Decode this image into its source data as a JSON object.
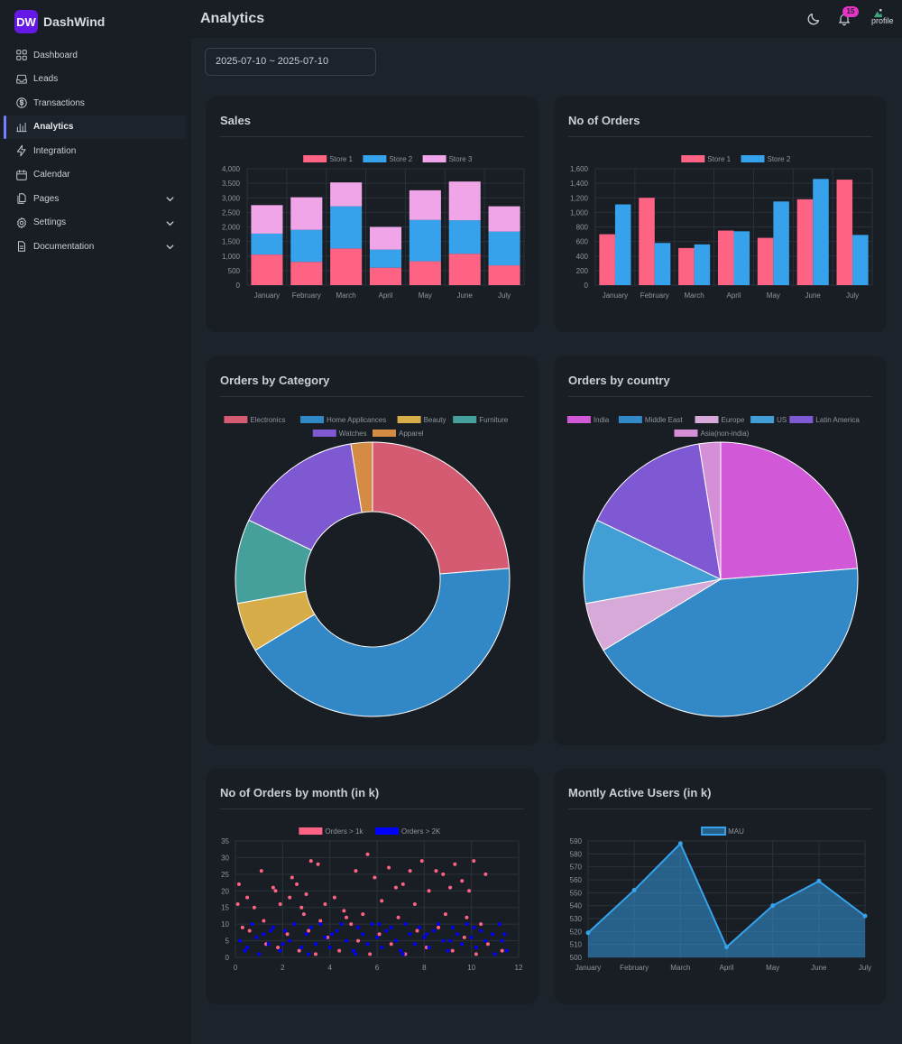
{
  "brand": {
    "logo": "DW",
    "name": "DashWind"
  },
  "sidebar": {
    "items": [
      {
        "label": "Dashboard",
        "icon": "squares-icon"
      },
      {
        "label": "Leads",
        "icon": "inbox-icon"
      },
      {
        "label": "Transactions",
        "icon": "dollar-icon"
      },
      {
        "label": "Analytics",
        "icon": "bar-chart-icon",
        "active": true
      },
      {
        "label": "Integration",
        "icon": "bolt-icon"
      },
      {
        "label": "Calendar",
        "icon": "calendar-icon"
      },
      {
        "label": "Pages",
        "icon": "documents-icon",
        "expandable": true
      },
      {
        "label": "Settings",
        "icon": "gear-icon",
        "expandable": true
      },
      {
        "label": "Documentation",
        "icon": "document-icon",
        "expandable": true
      }
    ]
  },
  "header": {
    "title": "Analytics",
    "notification_count": "15",
    "profile_alt": "profile"
  },
  "filters": {
    "date_range": "2025-07-10 ~ 2025-07-10"
  },
  "colors": {
    "pink": "#ff6384",
    "blue": "#36a2eb",
    "lavender": "#f0a5e8",
    "accent": "#7480ff"
  },
  "cards": {
    "sales": "Sales",
    "orders": "No of Orders",
    "category": "Orders by Category",
    "country": "Orders by country",
    "scatter": "No of Orders by month (in k)",
    "mau": "Montly Active Users (in k)"
  },
  "chart_data": [
    {
      "id": "sales",
      "type": "bar",
      "stacked": true,
      "categories": [
        "January",
        "February",
        "March",
        "April",
        "May",
        "June",
        "July"
      ],
      "series": [
        {
          "name": "Store 1",
          "color": "#ff6384",
          "values": [
            1050,
            800,
            1260,
            600,
            820,
            1080,
            680
          ]
        },
        {
          "name": "Store 2",
          "color": "#36a2eb",
          "values": [
            720,
            1100,
            1450,
            620,
            1420,
            1150,
            1160
          ]
        },
        {
          "name": "Store 3",
          "color": "#f0a5e8",
          "values": [
            980,
            1120,
            820,
            780,
            1020,
            1330,
            870
          ]
        }
      ],
      "ylim": [
        0,
        4000
      ],
      "yticks": [
        0,
        500,
        1000,
        1500,
        2000,
        2500,
        3000,
        3500,
        4000
      ],
      "ytick_labels": [
        "0",
        "500",
        "1,000",
        "1,500",
        "2,000",
        "2,500",
        "3,000",
        "3,500",
        "4,000"
      ],
      "legend": "top",
      "grid": true
    },
    {
      "id": "orders",
      "type": "bar",
      "stacked": false,
      "categories": [
        "January",
        "February",
        "March",
        "April",
        "May",
        "June",
        "July"
      ],
      "series": [
        {
          "name": "Store 1",
          "color": "#ff6384",
          "values": [
            700,
            1200,
            510,
            750,
            650,
            1180,
            1450
          ]
        },
        {
          "name": "Store 2",
          "color": "#36a2eb",
          "values": [
            1110,
            580,
            560,
            740,
            1150,
            1460,
            690
          ]
        }
      ],
      "ylim": [
        0,
        1600
      ],
      "yticks": [
        0,
        200,
        400,
        600,
        800,
        1000,
        1200,
        1400,
        1600
      ],
      "ytick_labels": [
        "0",
        "200",
        "400",
        "600",
        "800",
        "1,000",
        "1,200",
        "1,400",
        "1,600"
      ],
      "legend": "top",
      "grid": true
    },
    {
      "id": "category",
      "type": "pie",
      "doughnut": true,
      "labels": [
        "Electronics",
        "Home Applicances",
        "Beauty",
        "Furniture",
        "Watches",
        "Apparel"
      ],
      "values": [
        122,
        219,
        30,
        51,
        79,
        13
      ],
      "colors": [
        "#d55b73",
        "#3288c6",
        "#d7ad4a",
        "#45a09c",
        "#7f59d1",
        "#d48c44"
      ],
      "legend": "top"
    },
    {
      "id": "country",
      "type": "pie",
      "doughnut": false,
      "labels": [
        "India",
        "Middle East",
        "Europe",
        "US",
        "Latin America",
        "Asia(non-india)"
      ],
      "values": [
        122,
        219,
        30,
        51,
        79,
        13
      ],
      "colors": [
        "#d158d6",
        "#3389c8",
        "#d7a9d8",
        "#419fd6",
        "#7f58d4",
        "#d58fd6"
      ],
      "legend": "top"
    },
    {
      "id": "scatter",
      "type": "scatter",
      "series": [
        {
          "name": "Orders > 1k",
          "color": "#ff6384",
          "points": [
            [
              0.1,
              16
            ],
            [
              0.15,
              22
            ],
            [
              0.5,
              18
            ],
            [
              0.8,
              15
            ],
            [
              1.1,
              26
            ],
            [
              1.6,
              21
            ],
            [
              1.7,
              20
            ],
            [
              1.9,
              16
            ],
            [
              2.3,
              18
            ],
            [
              2.4,
              24
            ],
            [
              2.6,
              22
            ],
            [
              2.8,
              15
            ],
            [
              3,
              19
            ],
            [
              3.2,
              29
            ],
            [
              3.5,
              28
            ],
            [
              3.8,
              16
            ],
            [
              4.2,
              18
            ],
            [
              4.6,
              14
            ],
            [
              5.1,
              26
            ],
            [
              5.4,
              13
            ],
            [
              5.6,
              31
            ],
            [
              5.9,
              24
            ],
            [
              6.2,
              17
            ],
            [
              6.5,
              27
            ],
            [
              6.8,
              21
            ],
            [
              7.1,
              22
            ],
            [
              7.4,
              26
            ],
            [
              7.6,
              16
            ],
            [
              7.9,
              29
            ],
            [
              8.2,
              20
            ],
            [
              8.5,
              26
            ],
            [
              8.8,
              25
            ],
            [
              9.1,
              21
            ],
            [
              9.3,
              28
            ],
            [
              9.6,
              23
            ],
            [
              9.9,
              20
            ],
            [
              10.1,
              29
            ],
            [
              10.6,
              25
            ],
            [
              0.3,
              9
            ],
            [
              0.6,
              8
            ],
            [
              1.3,
              4
            ],
            [
              1.8,
              3
            ],
            [
              2.2,
              7
            ],
            [
              2.7,
              2
            ],
            [
              3.1,
              8
            ],
            [
              3.4,
              1
            ],
            [
              3.9,
              6
            ],
            [
              4.4,
              2
            ],
            [
              4.9,
              10
            ],
            [
              5.2,
              5
            ],
            [
              5.7,
              1
            ],
            [
              6.1,
              7
            ],
            [
              6.6,
              4
            ],
            [
              7.2,
              1
            ],
            [
              7.7,
              8
            ],
            [
              8.1,
              3
            ],
            [
              8.6,
              9
            ],
            [
              9.2,
              2
            ],
            [
              9.7,
              6
            ],
            [
              10.2,
              1
            ],
            [
              10.7,
              4
            ],
            [
              11.3,
              2
            ],
            [
              8.9,
              13
            ],
            [
              9.8,
              12
            ],
            [
              10.4,
              10
            ],
            [
              6.9,
              12
            ],
            [
              4.7,
              12
            ],
            [
              3.6,
              11
            ],
            [
              2.9,
              13
            ],
            [
              1.2,
              11
            ]
          ]
        },
        {
          "name": "Orders > 2K",
          "color": "#0000ff",
          "points": [
            [
              0.2,
              5
            ],
            [
              0.4,
              2
            ],
            [
              0.7,
              10
            ],
            [
              0.9,
              6
            ],
            [
              1.2,
              7
            ],
            [
              1.4,
              4
            ],
            [
              1.6,
              9
            ],
            [
              1.9,
              2
            ],
            [
              2.1,
              8
            ],
            [
              2.3,
              5
            ],
            [
              2.5,
              10
            ],
            [
              2.8,
              3
            ],
            [
              3,
              7
            ],
            [
              3.2,
              9
            ],
            [
              3.4,
              4
            ],
            [
              3.6,
              10
            ],
            [
              3.8,
              6
            ],
            [
              4,
              3
            ],
            [
              4.3,
              8
            ],
            [
              4.5,
              10
            ],
            [
              4.7,
              5
            ],
            [
              5,
              2
            ],
            [
              5.2,
              9
            ],
            [
              5.4,
              7
            ],
            [
              5.6,
              4
            ],
            [
              5.8,
              10
            ],
            [
              6,
              6
            ],
            [
              6.2,
              3
            ],
            [
              6.4,
              8
            ],
            [
              6.6,
              9
            ],
            [
              6.8,
              5
            ],
            [
              7,
              2
            ],
            [
              7.2,
              10
            ],
            [
              7.4,
              7
            ],
            [
              7.6,
              4
            ],
            [
              7.8,
              9
            ],
            [
              8,
              6
            ],
            [
              8.2,
              3
            ],
            [
              8.4,
              8
            ],
            [
              8.6,
              10
            ],
            [
              8.8,
              5
            ],
            [
              9,
              2
            ],
            [
              9.2,
              9
            ],
            [
              9.4,
              7
            ],
            [
              9.6,
              4
            ],
            [
              9.8,
              10
            ],
            [
              10,
              6
            ],
            [
              10.2,
              3
            ],
            [
              10.4,
              8
            ],
            [
              10.6,
              5
            ],
            [
              11,
              1
            ],
            [
              11.2,
              10
            ],
            [
              11.4,
              7
            ],
            [
              11.5,
              2
            ],
            [
              0.5,
              3
            ],
            [
              1,
              1
            ],
            [
              1.5,
              8
            ],
            [
              2,
              4
            ],
            [
              3.1,
              1
            ],
            [
              4.1,
              7
            ],
            [
              5.1,
              1
            ],
            [
              6.1,
              10
            ],
            [
              7.1,
              1
            ],
            [
              8.1,
              7
            ],
            [
              9.1,
              5
            ],
            [
              10.1,
              9
            ],
            [
              10.9,
              7
            ],
            [
              11.3,
              5
            ]
          ]
        }
      ],
      "xlim": [
        0,
        12
      ],
      "xticks": [
        0,
        2,
        4,
        6,
        8,
        10,
        12
      ],
      "ylim": [
        0,
        35
      ],
      "yticks": [
        0,
        5,
        10,
        15,
        20,
        25,
        30,
        35
      ],
      "legend": "top",
      "grid": true
    },
    {
      "id": "mau",
      "type": "area",
      "categories": [
        "January",
        "February",
        "March",
        "April",
        "May",
        "June",
        "July"
      ],
      "series": [
        {
          "name": "MAU",
          "color": "#36a2eb",
          "values": [
            519,
            552,
            588,
            508,
            540,
            559,
            532
          ]
        }
      ],
      "ylim": [
        500,
        590
      ],
      "yticks": [
        500,
        510,
        520,
        530,
        540,
        550,
        560,
        570,
        580,
        590
      ],
      "legend": "top",
      "grid": true
    }
  ]
}
